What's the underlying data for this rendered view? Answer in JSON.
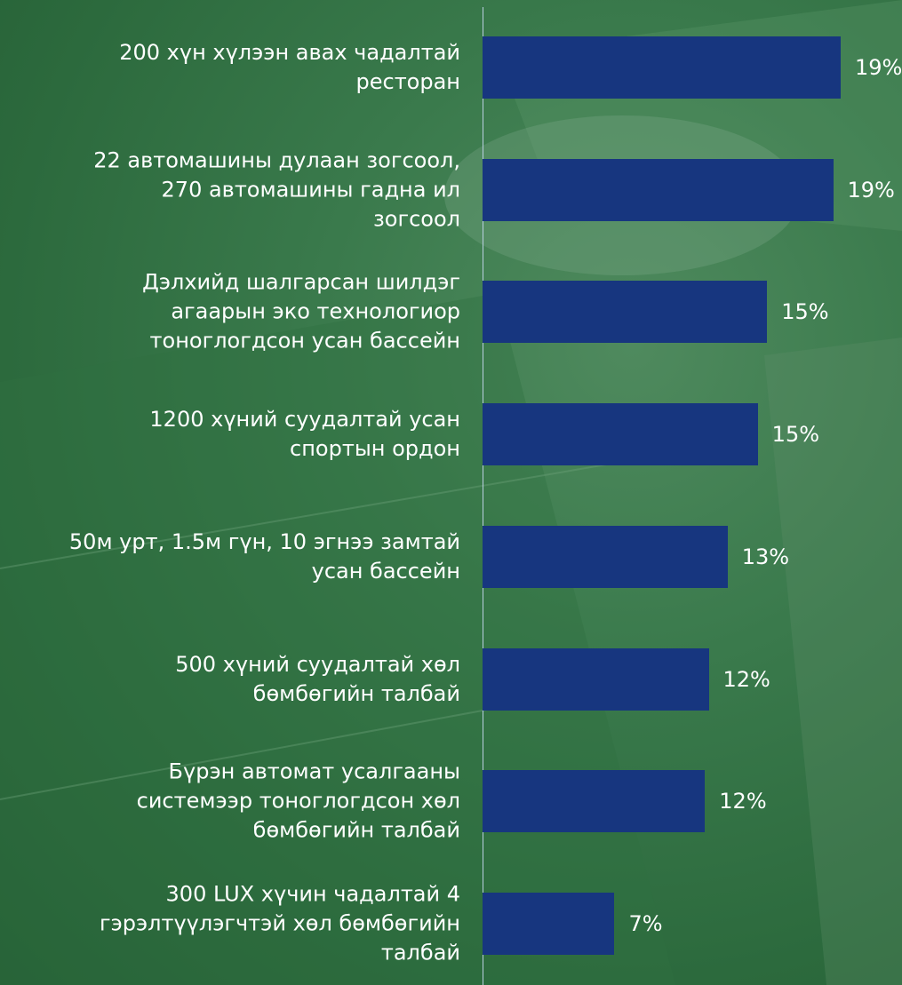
{
  "chart_data": {
    "type": "bar",
    "orientation": "horizontal",
    "categories": [
      "200 хүн хүлээн авах чадалтай\nресторан",
      "22 автомашины дулаан зогсоол,\n270 автомашины гадна ил\nзогсоол",
      "Дэлхийд шалгарсан шилдэг\nагаарын эко технологиор\nтоноглогдсон усан бассейн",
      "1200 хүний суудалтай усан\nспортын ордон",
      "50м урт, 1.5м гүн, 10 эгнээ замтай\nусан бассейн",
      "500 хүний суудалтай хөл\nбөмбөгийн талбай",
      "Бүрэн автомат усалгааны\nсистемээр тоноглогдсон хөл\nбөмбөгийн талбай",
      "300 LUX хүчин чадалтай 4\nгэрэлтүүлэгчтэй хөл бөмбөгийн\nталбай"
    ],
    "values": [
      19,
      18.6,
      15.1,
      14.6,
      13,
      12,
      11.8,
      7
    ],
    "value_labels": [
      "19%",
      "19%",
      "15%",
      "15%",
      "13%",
      "12%",
      "12%",
      "7%"
    ],
    "color": "#17367f"
  }
}
